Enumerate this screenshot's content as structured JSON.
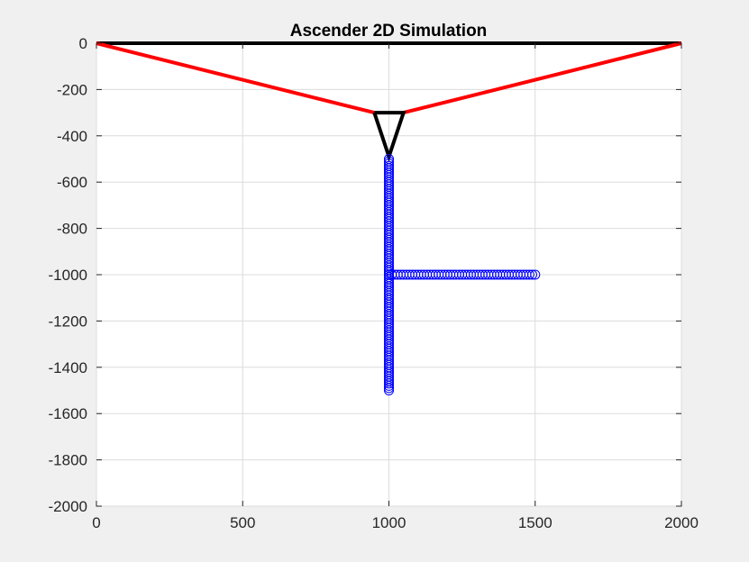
{
  "chart_data": {
    "type": "scatter",
    "title": "Ascender 2D Simulation",
    "xlabel": "",
    "ylabel": "",
    "xlim": [
      0,
      2000
    ],
    "ylim": [
      -2000,
      0
    ],
    "grid": true,
    "xticks": [
      0,
      500,
      1000,
      1500,
      2000
    ],
    "yticks": [
      0,
      -200,
      -400,
      -600,
      -800,
      -1000,
      -1200,
      -1400,
      -1600,
      -1800,
      -2000
    ],
    "xtick_labels": [
      "0",
      "500",
      "1000",
      "1500",
      "2000"
    ],
    "ytick_labels": [
      "0",
      "-200",
      "-400",
      "-600",
      "-800",
      "-1000",
      "-1200",
      "-1400",
      "-1600",
      "-1800",
      "-2000"
    ],
    "lines": [
      {
        "role": "ceiling",
        "color": "#000000",
        "x": [
          0,
          2000
        ],
        "y": [
          0,
          0
        ]
      },
      {
        "role": "left-rope",
        "color": "#ff0000",
        "x": [
          0,
          950
        ],
        "y": [
          0,
          -300
        ]
      },
      {
        "role": "right-rope",
        "color": "#ff0000",
        "x": [
          2000,
          1050
        ],
        "y": [
          0,
          -300
        ]
      },
      {
        "role": "triangle",
        "color": "#000000",
        "x": [
          950,
          1050,
          1000,
          950
        ],
        "y": [
          -300,
          -300,
          -490,
          -300
        ]
      }
    ],
    "markers": {
      "color": "#0000ff",
      "shape": "circle",
      "vertical": {
        "x": 1000,
        "y_from": -500,
        "y_to": -1500,
        "step": 10
      },
      "horizontal": {
        "y": -1000,
        "x_from": 1000,
        "x_to": 1500,
        "step": 10
      }
    }
  }
}
